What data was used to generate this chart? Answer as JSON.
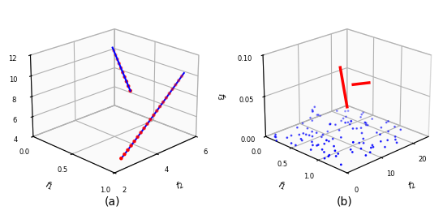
{
  "subplot_a": {
    "xlabel": "$f_2$",
    "ylabel": "$f_1$",
    "zlabel": "$f_3$",
    "xlim": [
      2,
      6
    ],
    "ylim_reversed": [
      1,
      0
    ],
    "zlim": [
      4,
      12
    ],
    "xticks": [
      2,
      4,
      6
    ],
    "yticks": [
      1,
      0.5,
      0
    ],
    "zticks": [
      4,
      6,
      8,
      10,
      12
    ],
    "blue_color": "#0000ff",
    "red_color": "#ff0000",
    "elev": 22,
    "azim": -135,
    "label": "(a)"
  },
  "subplot_b": {
    "xlabel": "$f_2$",
    "ylabel": "$f_1$",
    "zlabel": "$f_3$",
    "xlim": [
      0,
      25
    ],
    "ylim_reversed": [
      1.5,
      0
    ],
    "zlim": [
      0,
      0.1
    ],
    "xticks": [
      0,
      10,
      20
    ],
    "yticks": [
      1,
      0.5,
      0
    ],
    "zticks": [
      0,
      0.05,
      0.1
    ],
    "blue_color": "#0000ff",
    "red_color": "#ff0000",
    "elev": 22,
    "azim": -135,
    "label": "(b)"
  }
}
